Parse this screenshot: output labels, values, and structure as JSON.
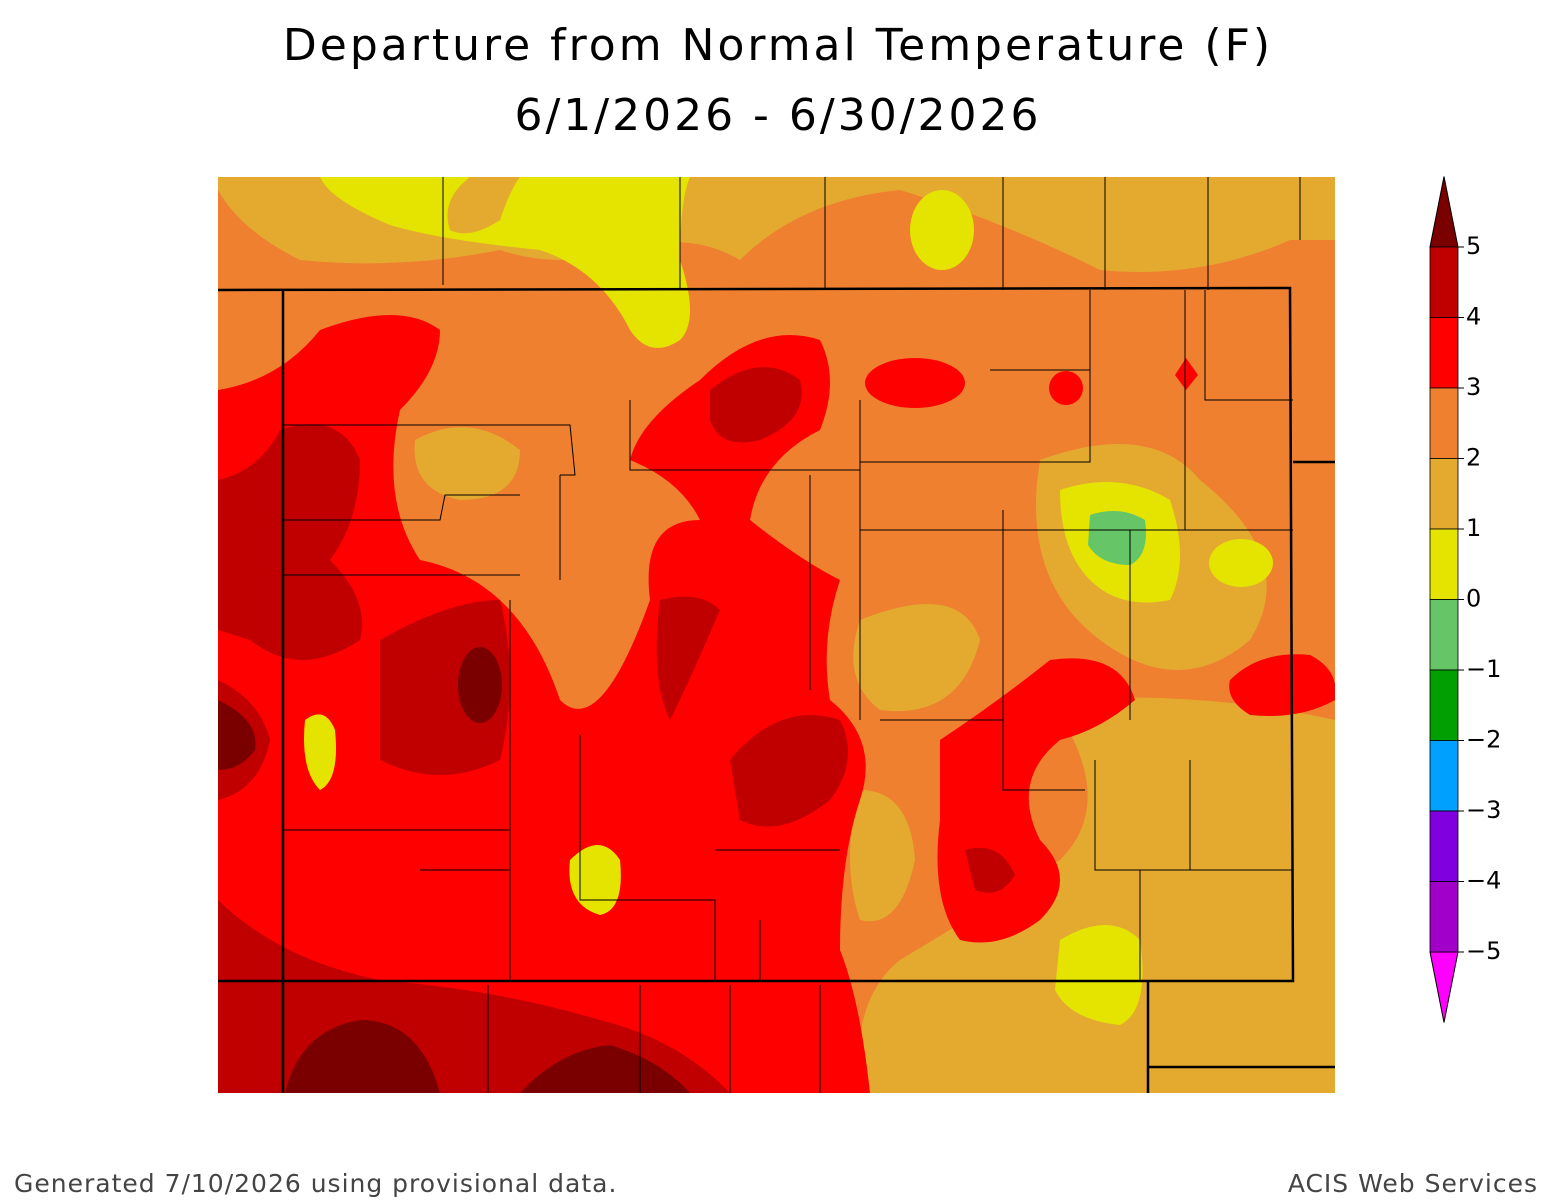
{
  "header": {
    "title": "Departure from Normal Temperature (F)",
    "subtitle": "6/1/2026 - 6/30/2026"
  },
  "colorbar": {
    "ticks": [
      5,
      4,
      3,
      2,
      1,
      0,
      {
        "value": -1,
        "label": "−1"
      },
      {
        "value": -2,
        "label": "−2"
      },
      {
        "value": -3,
        "label": "−3"
      },
      {
        "value": -4,
        "label": "−4"
      },
      {
        "value": -5,
        "label": "−5"
      }
    ],
    "colors": [
      "#7a0000",
      "#c00000",
      "#ff0000",
      "#ee8030",
      "#e4aa30",
      "#e4e400",
      "#66c566",
      "#00a000",
      "#00a0ff",
      "#8000e0",
      "#a000c8",
      "#ff00ff"
    ]
  },
  "footer": {
    "left": "Generated 7/10/2026 using provisional data.",
    "right": "ACIS Web Services"
  }
}
